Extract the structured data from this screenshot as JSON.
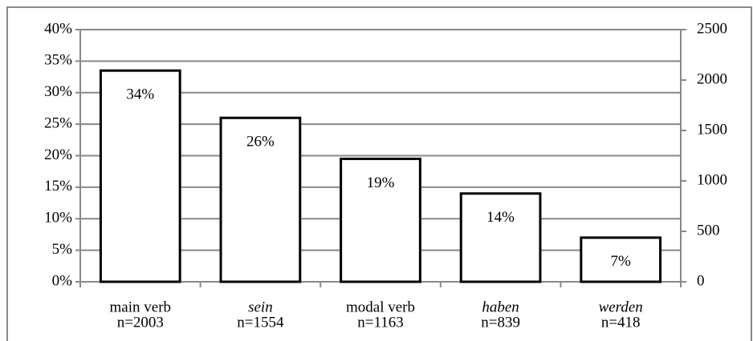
{
  "chart_data": {
    "type": "bar",
    "categories": [
      "main verb",
      "sein",
      "modal verb",
      "haben",
      "werden"
    ],
    "category_italic": [
      false,
      true,
      false,
      true,
      true
    ],
    "category_counts": [
      "n=2003",
      "n=1554",
      "n=1163",
      "n=839",
      "n=418"
    ],
    "values": [
      33.5,
      26.0,
      19.5,
      14.0,
      7.0
    ],
    "value_labels": [
      "34%",
      "26%",
      "19%",
      "14%",
      "7%"
    ],
    "color": "#ffffff",
    "ylim": [
      0,
      40
    ],
    "yticks": [
      {
        "value": 0,
        "label": "0%"
      },
      {
        "value": 5,
        "label": "5%"
      },
      {
        "value": 10,
        "label": "10%"
      },
      {
        "value": 15,
        "label": "15%"
      },
      {
        "value": 20,
        "label": "20%"
      },
      {
        "value": 25,
        "label": "25%"
      },
      {
        "value": 30,
        "label": "30%"
      },
      {
        "value": 35,
        "label": "35%"
      },
      {
        "value": 40,
        "label": "40%"
      }
    ],
    "y2lim": [
      0,
      2500
    ],
    "y2ticks": [
      0,
      500,
      1000,
      1500,
      2000,
      2500
    ],
    "grid": true
  }
}
